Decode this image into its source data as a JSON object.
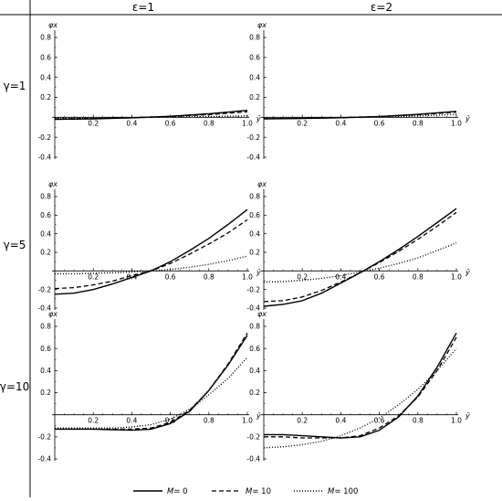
{
  "col_headers": [
    "ε=1",
    "ε=2"
  ],
  "row_headers": [
    "γ=1",
    "γ=5",
    "γ=10"
  ],
  "legend": {
    "items": [
      {
        "prefix": "M",
        "value": "= 0",
        "style": "solid"
      },
      {
        "prefix": "M",
        "value": "= 10",
        "style": "dashed"
      },
      {
        "prefix": "M",
        "value": "= 100",
        "style": "dotted"
      }
    ]
  },
  "chart_data": [
    {
      "type": "line",
      "row": 0,
      "col": 0,
      "title": "",
      "xlabel": "ȳ",
      "ylabel": "φx",
      "xlim": [
        0,
        1
      ],
      "ylim": [
        -0.4,
        0.8
      ],
      "xticks": [
        "0.2",
        "0.4",
        "0.6",
        "0.8",
        "1.0"
      ],
      "yticks": [
        "-0.4",
        "-0.2",
        "0.2",
        "0.4",
        "0.6",
        "0.8"
      ],
      "series": [
        {
          "name": "M= 0",
          "style": "solid",
          "x": [
            0,
            0.2,
            0.4,
            0.6,
            0.8,
            1.0
          ],
          "values": [
            -0.02,
            -0.015,
            -0.005,
            0.01,
            0.035,
            0.07
          ]
        },
        {
          "name": "M= 10",
          "style": "dashed",
          "x": [
            0,
            0.2,
            0.4,
            0.6,
            0.8,
            1.0
          ],
          "values": [
            -0.015,
            -0.012,
            -0.004,
            0.008,
            0.028,
            0.055
          ]
        },
        {
          "name": "M= 100",
          "style": "dotted",
          "x": [
            0,
            0.2,
            0.4,
            0.6,
            0.8,
            1.0
          ],
          "values": [
            -0.005,
            -0.004,
            -0.002,
            0.002,
            0.008,
            0.015
          ]
        }
      ]
    },
    {
      "type": "line",
      "row": 0,
      "col": 1,
      "title": "",
      "xlabel": "ȳ",
      "ylabel": "φx",
      "xlim": [
        0,
        1
      ],
      "ylim": [
        -0.4,
        0.8
      ],
      "xticks": [
        "0.2",
        "0.4",
        "0.6",
        "0.8",
        "1.0"
      ],
      "yticks": [
        "-0.4",
        "-0.2",
        "0.2",
        "0.4",
        "0.6",
        "0.8"
      ],
      "series": [
        {
          "name": "M= 0",
          "style": "solid",
          "x": [
            0,
            0.2,
            0.4,
            0.6,
            0.8,
            1.0
          ],
          "values": [
            -0.015,
            -0.012,
            -0.004,
            0.008,
            0.03,
            0.06
          ]
        },
        {
          "name": "M= 10",
          "style": "dashed",
          "x": [
            0,
            0.2,
            0.4,
            0.6,
            0.8,
            1.0
          ],
          "values": [
            -0.013,
            -0.01,
            -0.003,
            0.007,
            0.026,
            0.052
          ]
        },
        {
          "name": "M= 100",
          "style": "dotted",
          "x": [
            0,
            0.2,
            0.4,
            0.6,
            0.8,
            1.0
          ],
          "values": [
            -0.008,
            -0.006,
            -0.002,
            0.004,
            0.015,
            0.03
          ]
        }
      ]
    },
    {
      "type": "line",
      "row": 1,
      "col": 0,
      "title": "",
      "xlabel": "ȳ",
      "ylabel": "φx",
      "xlim": [
        0,
        1
      ],
      "ylim": [
        -0.4,
        0.8
      ],
      "xticks": [
        "0.2",
        "0.4",
        "0.6",
        "0.8",
        "1.0"
      ],
      "yticks": [
        "-0.4",
        "-0.2",
        "0.2",
        "0.4",
        "0.6",
        "0.8"
      ],
      "series": [
        {
          "name": "M= 0",
          "style": "solid",
          "x": [
            0,
            0.1,
            0.2,
            0.3,
            0.4,
            0.5,
            0.6,
            0.7,
            0.8,
            0.9,
            1.0
          ],
          "values": [
            -0.25,
            -0.24,
            -0.2,
            -0.14,
            -0.07,
            0.0,
            0.1,
            0.22,
            0.35,
            0.5,
            0.66
          ]
        },
        {
          "name": "M= 10",
          "style": "dashed",
          "x": [
            0,
            0.1,
            0.2,
            0.3,
            0.4,
            0.5,
            0.6,
            0.7,
            0.8,
            0.9,
            1.0
          ],
          "values": [
            -0.19,
            -0.18,
            -0.15,
            -0.11,
            -0.05,
            0.0,
            0.08,
            0.18,
            0.29,
            0.41,
            0.55
          ]
        },
        {
          "name": "M= 100",
          "style": "dotted",
          "x": [
            0,
            0.1,
            0.2,
            0.3,
            0.4,
            0.5,
            0.6,
            0.7,
            0.8,
            0.9,
            1.0
          ],
          "values": [
            -0.03,
            -0.03,
            -0.025,
            -0.02,
            -0.01,
            0.0,
            0.015,
            0.04,
            0.07,
            0.11,
            0.16
          ]
        }
      ]
    },
    {
      "type": "line",
      "row": 1,
      "col": 1,
      "title": "",
      "xlabel": "ȳ",
      "ylabel": "φx",
      "xlim": [
        0,
        1
      ],
      "ylim": [
        -0.4,
        0.8
      ],
      "xticks": [
        "0.2",
        "0.4",
        "0.6",
        "0.8",
        "1.0"
      ],
      "yticks": [
        "-0.4",
        "-0.2",
        "0.2",
        "0.4",
        "0.6",
        "0.8"
      ],
      "series": [
        {
          "name": "M= 0",
          "style": "solid",
          "x": [
            0,
            0.1,
            0.2,
            0.3,
            0.4,
            0.5,
            0.6,
            0.7,
            0.8,
            0.9,
            1.0
          ],
          "values": [
            -0.38,
            -0.36,
            -0.32,
            -0.24,
            -0.13,
            -0.02,
            0.1,
            0.23,
            0.37,
            0.52,
            0.67
          ]
        },
        {
          "name": "M= 10",
          "style": "dashed",
          "x": [
            0,
            0.1,
            0.2,
            0.3,
            0.4,
            0.5,
            0.6,
            0.7,
            0.8,
            0.9,
            1.0
          ],
          "values": [
            -0.33,
            -0.32,
            -0.28,
            -0.21,
            -0.12,
            -0.02,
            0.09,
            0.21,
            0.34,
            0.48,
            0.63
          ]
        },
        {
          "name": "M= 100",
          "style": "dotted",
          "x": [
            0,
            0.1,
            0.2,
            0.3,
            0.4,
            0.5,
            0.6,
            0.7,
            0.8,
            0.9,
            1.0
          ],
          "values": [
            -0.12,
            -0.115,
            -0.1,
            -0.08,
            -0.05,
            -0.01,
            0.03,
            0.08,
            0.14,
            0.22,
            0.3
          ]
        }
      ]
    },
    {
      "type": "line",
      "row": 2,
      "col": 0,
      "title": "",
      "xlabel": "ȳ",
      "ylabel": "φx",
      "xlim": [
        0,
        1
      ],
      "ylim": [
        -0.4,
        0.8
      ],
      "xticks": [
        "0.2",
        "0.4",
        "0.6",
        "0.8",
        "1.0"
      ],
      "yticks": [
        "-0.4",
        "-0.2",
        "0.2",
        "0.4",
        "0.6",
        "0.8"
      ],
      "series": [
        {
          "name": "M= 0",
          "style": "solid",
          "x": [
            0,
            0.1,
            0.2,
            0.3,
            0.4,
            0.5,
            0.6,
            0.7,
            0.8,
            0.9,
            1.0
          ],
          "values": [
            -0.13,
            -0.13,
            -0.13,
            -0.135,
            -0.14,
            -0.13,
            -0.08,
            0.03,
            0.22,
            0.45,
            0.72
          ]
        },
        {
          "name": "M= 10",
          "style": "dashed",
          "x": [
            0,
            0.1,
            0.2,
            0.3,
            0.4,
            0.5,
            0.6,
            0.7,
            0.8,
            0.9,
            1.0
          ],
          "values": [
            -0.13,
            -0.13,
            -0.13,
            -0.13,
            -0.13,
            -0.12,
            -0.07,
            0.04,
            0.22,
            0.46,
            0.74
          ]
        },
        {
          "name": "M= 100",
          "style": "dotted",
          "x": [
            0,
            0.1,
            0.2,
            0.3,
            0.4,
            0.5,
            0.6,
            0.7,
            0.8,
            0.9,
            1.0
          ],
          "values": [
            -0.12,
            -0.12,
            -0.12,
            -0.12,
            -0.11,
            -0.09,
            -0.04,
            0.05,
            0.18,
            0.33,
            0.52
          ]
        }
      ]
    },
    {
      "type": "line",
      "row": 2,
      "col": 1,
      "title": "",
      "xlabel": "ȳ",
      "ylabel": "φx",
      "xlim": [
        0,
        1
      ],
      "ylim": [
        -0.4,
        0.8
      ],
      "xticks": [
        "0.2",
        "0.4",
        "0.6",
        "0.8",
        "1.0"
      ],
      "yticks": [
        "-0.4",
        "-0.2",
        "0.2",
        "0.4",
        "0.6",
        "0.8"
      ],
      "series": [
        {
          "name": "M= 0",
          "style": "solid",
          "x": [
            0,
            0.1,
            0.2,
            0.3,
            0.4,
            0.5,
            0.6,
            0.7,
            0.8,
            0.9,
            1.0
          ],
          "values": [
            -0.18,
            -0.18,
            -0.19,
            -0.2,
            -0.21,
            -0.2,
            -0.14,
            -0.02,
            0.17,
            0.43,
            0.74
          ]
        },
        {
          "name": "M= 10",
          "style": "dashed",
          "x": [
            0,
            0.1,
            0.2,
            0.3,
            0.4,
            0.5,
            0.6,
            0.7,
            0.8,
            0.9,
            1.0
          ],
          "values": [
            -0.2,
            -0.2,
            -0.21,
            -0.21,
            -0.21,
            -0.19,
            -0.12,
            -0.01,
            0.16,
            0.4,
            0.7
          ]
        },
        {
          "name": "M= 100",
          "style": "dotted",
          "x": [
            0,
            0.1,
            0.2,
            0.3,
            0.4,
            0.5,
            0.6,
            0.7,
            0.8,
            0.9,
            1.0
          ],
          "values": [
            -0.3,
            -0.29,
            -0.27,
            -0.24,
            -0.19,
            -0.12,
            -0.03,
            0.09,
            0.23,
            0.4,
            0.6
          ]
        }
      ]
    }
  ]
}
